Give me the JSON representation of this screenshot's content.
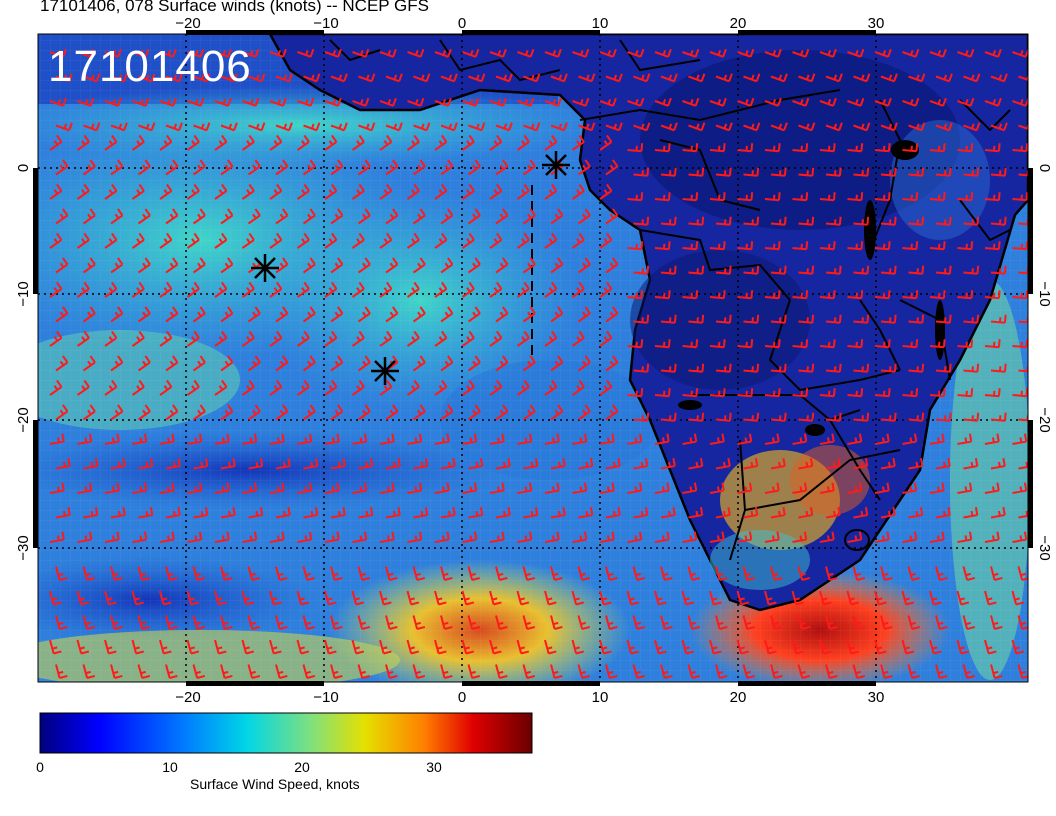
{
  "header": {
    "title": "17101406, 078 Surface winds (knots) -- NCEP GFS"
  },
  "map": {
    "date_stamp": "17101406",
    "lon_ticks": [
      "−20",
      "−10",
      "0",
      "10",
      "20",
      "30"
    ],
    "lat_ticks": [
      "0",
      "−10",
      "−20",
      "−30"
    ],
    "lon_values": [
      -20,
      -10,
      0,
      10,
      20,
      30
    ],
    "lat_values": [
      0,
      -10,
      -20,
      -30
    ],
    "colors": {
      "barb": "#ff1a1a",
      "land_dark": "#0b1a8c",
      "ocean_mid": "#2a66d8",
      "ocean_light": "#3fb7d0",
      "jet": "#e8302a",
      "border": "#000000"
    },
    "markers": [
      "asterisk",
      "asterisk",
      "asterisk"
    ]
  },
  "colorbar": {
    "title": "Surface Wind Speed, knots",
    "tick_labels": [
      "0",
      "10",
      "20",
      "30"
    ],
    "tick_values": [
      0,
      10,
      20,
      30
    ],
    "min": 0,
    "max": 38,
    "colormap": [
      "#00007f",
      "#0000ff",
      "#0080ff",
      "#00ffff",
      "#7fff7f",
      "#ffff00",
      "#ff8000",
      "#ff0000",
      "#7f0000"
    ]
  }
}
